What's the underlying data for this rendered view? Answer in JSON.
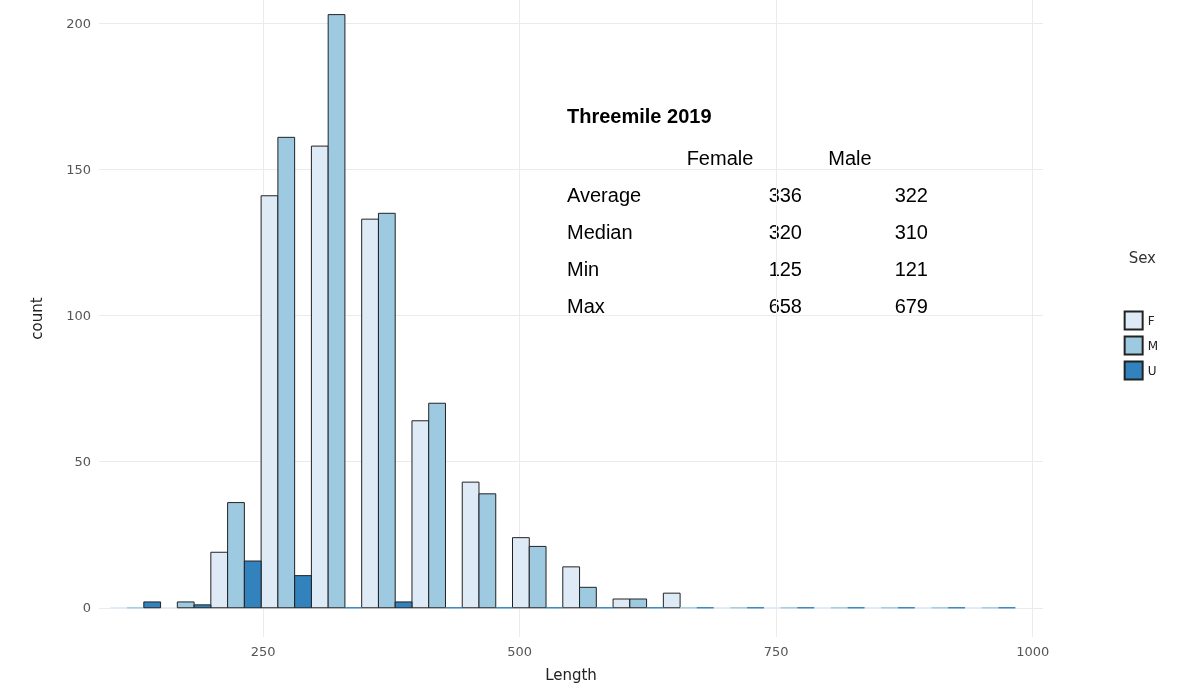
{
  "chart_data": {
    "type": "histogram",
    "title": "Threemile 2019",
    "xlabel": "Length",
    "ylabel": "count",
    "legend_title": "Sex",
    "bins": [
      101,
      150,
      199,
      248,
      297,
      346,
      395,
      444,
      493,
      542,
      591,
      640,
      689,
      738,
      787,
      836,
      885,
      934,
      983
    ],
    "series": [
      {
        "name": "F",
        "color": "#deebf7",
        "values": [
          0,
          0,
          19,
          141,
          158,
          133,
          64,
          43,
          24,
          14,
          3,
          5,
          0,
          0,
          0,
          0,
          0,
          0
        ]
      },
      {
        "name": "M",
        "color": "#9ecae1",
        "values": [
          0,
          2,
          36,
          161,
          203,
          135,
          70,
          39,
          21,
          7,
          3,
          0,
          0,
          0,
          0,
          0,
          0,
          0
        ]
      },
      {
        "name": "U",
        "color": "#3182bd",
        "values": [
          2,
          1,
          16,
          11,
          0,
          2,
          0,
          0,
          0,
          0,
          0,
          0,
          0,
          0,
          0,
          0,
          0,
          0
        ]
      }
    ],
    "annotations": [
      "Female",
      "Male",
      "Average",
      "336",
      "322",
      "Median",
      "320",
      "310",
      "Min",
      "125",
      "121",
      "Max",
      "658",
      "679"
    ],
    "xlim": [
      90,
      1010
    ],
    "xticks": [
      250,
      500,
      750,
      1000
    ],
    "ylim": [
      -10,
      208
    ],
    "yticks": [
      0,
      50,
      100,
      150,
      200
    ],
    "grid": true,
    "legend": "right"
  }
}
